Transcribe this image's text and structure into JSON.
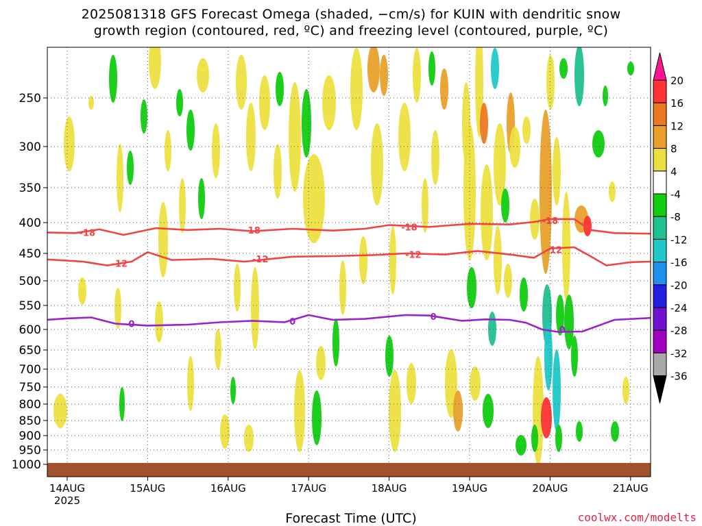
{
  "title_line1": "2025081318 GFS Forecast Omega (shaded, −cm/s) for KUIN with dendritic snow",
  "title_line2": "growth region (contoured, red, ºC) and freezing level (contoured, purple, ºC)",
  "x_axis_title": "Forecast Time (UTC)",
  "credit": "coolwx.com/modelts",
  "colors": {
    "ground": "#a0522d",
    "dgz": "#ee4444",
    "freezing": "#9922cc"
  },
  "chart_data": {
    "type": "heatmap",
    "xlabel": "Forecast Time (UTC)",
    "x_ticks": [
      {
        "label": "14AUG",
        "sub": "2025",
        "day": 14
      },
      {
        "label": "15AUG",
        "day": 15
      },
      {
        "label": "16AUG",
        "day": 16
      },
      {
        "label": "17AUG",
        "day": 17
      },
      {
        "label": "18AUG",
        "day": 18
      },
      {
        "label": "19AUG",
        "day": 19
      },
      {
        "label": "20AUG",
        "day": 20
      },
      {
        "label": "21AUG",
        "day": 21
      }
    ],
    "xlim": [
      13.75,
      21.25
    ],
    "y_ticks": [
      250,
      300,
      350,
      400,
      450,
      500,
      550,
      600,
      650,
      700,
      750,
      800,
      850,
      900,
      950,
      1000
    ],
    "y_axis": "pressure (hPa), inverted",
    "colorbar": {
      "labels": [
        20,
        16,
        12,
        8,
        4,
        -4,
        -8,
        -12,
        -16,
        -20,
        -24,
        -28,
        -32,
        -36
      ],
      "colors": [
        "#ff1493",
        "#ff3333",
        "#ee7722",
        "#e8a02a",
        "#ece040",
        "#ffffff",
        "#11cc11",
        "#20c090",
        "#20c8c8",
        "#2090f0",
        "#2020e0",
        "#7010d0",
        "#a000c0",
        "#a8a8a8",
        "#000000"
      ]
    },
    "contours": [
      {
        "name": "dendritic -18",
        "label": "-18",
        "color": "#ee4444",
        "points": [
          [
            13.75,
            416
          ],
          [
            14.1,
            417
          ],
          [
            14.4,
            411
          ],
          [
            14.7,
            420
          ],
          [
            15.1,
            409
          ],
          [
            15.5,
            412
          ],
          [
            15.9,
            410
          ],
          [
            16.3,
            414
          ],
          [
            16.8,
            410
          ],
          [
            17.3,
            413
          ],
          [
            17.7,
            410
          ],
          [
            18.0,
            404
          ],
          [
            18.5,
            407
          ],
          [
            19.0,
            402
          ],
          [
            19.5,
            403
          ],
          [
            19.8,
            399
          ],
          [
            20.0,
            395
          ],
          [
            20.3,
            395
          ],
          [
            20.5,
            412
          ],
          [
            20.8,
            417
          ],
          [
            21.25,
            418
          ]
        ],
        "label_positions": [
          [
            14.25,
            416
          ],
          [
            16.3,
            412
          ],
          [
            18.25,
            407
          ],
          [
            20.0,
            397
          ]
        ]
      },
      {
        "name": "dendritic -12",
        "label": "-12",
        "color": "#ee4444",
        "points": [
          [
            13.75,
            461
          ],
          [
            14.2,
            465
          ],
          [
            14.5,
            472
          ],
          [
            14.8,
            465
          ],
          [
            15.0,
            448
          ],
          [
            15.3,
            462
          ],
          [
            15.8,
            460
          ],
          [
            16.2,
            465
          ],
          [
            16.8,
            456
          ],
          [
            17.3,
            455
          ],
          [
            17.8,
            453
          ],
          [
            18.2,
            450
          ],
          [
            18.7,
            452
          ],
          [
            19.1,
            446
          ],
          [
            19.5,
            452
          ],
          [
            19.8,
            458
          ],
          [
            20.0,
            442
          ],
          [
            20.3,
            440
          ],
          [
            20.5,
            455
          ],
          [
            20.7,
            472
          ],
          [
            21.0,
            466
          ],
          [
            21.25,
            465
          ]
        ],
        "label_positions": [
          [
            14.65,
            468
          ],
          [
            16.4,
            460
          ],
          [
            18.3,
            452
          ],
          [
            20.05,
            444
          ]
        ]
      },
      {
        "name": "freezing 0",
        "label": "0",
        "color": "#9922cc",
        "points": [
          [
            13.75,
            580
          ],
          [
            14.0,
            577
          ],
          [
            14.3,
            575
          ],
          [
            14.6,
            588
          ],
          [
            15.0,
            592
          ],
          [
            15.5,
            590
          ],
          [
            15.9,
            585
          ],
          [
            16.3,
            582
          ],
          [
            16.7,
            585
          ],
          [
            17.0,
            570
          ],
          [
            17.3,
            580
          ],
          [
            17.7,
            578
          ],
          [
            18.2,
            570
          ],
          [
            18.5,
            571
          ],
          [
            18.9,
            582
          ],
          [
            19.2,
            579
          ],
          [
            19.5,
            580
          ],
          [
            19.7,
            586
          ],
          [
            19.9,
            600
          ],
          [
            20.1,
            606
          ],
          [
            20.4,
            605
          ],
          [
            20.8,
            580
          ],
          [
            21.25,
            576
          ]
        ],
        "label_positions": [
          [
            14.8,
            588
          ],
          [
            16.8,
            583
          ],
          [
            18.55,
            573
          ],
          [
            20.15,
            600
          ]
        ]
      }
    ]
  }
}
